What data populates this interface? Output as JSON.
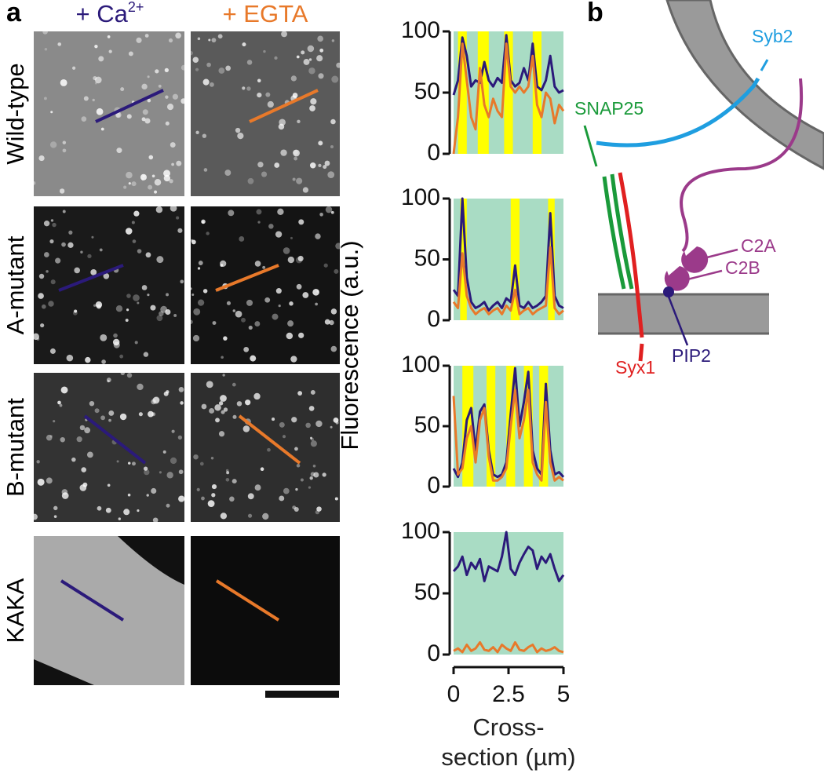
{
  "panel_labels": [
    "a",
    "b"
  ],
  "image_panel": {
    "columns": [
      {
        "text": "+ Ca",
        "sup": "2+",
        "color": "#2b1a7a"
      },
      {
        "text": "+ EGTA",
        "color": "#e8792a"
      }
    ],
    "rows": [
      "Wild-type",
      "A-mutant",
      "B-mutant",
      "KAKA"
    ]
  },
  "y_label": "Fluorescence (a.u.)",
  "x_label": "Cross-section (µm)",
  "diagram": {
    "labels": [
      "Syb2",
      "SNAP25",
      "C2A",
      "C2B",
      "Syx1",
      "PIP2"
    ]
  },
  "chart_data": [
    {
      "type": "line",
      "xlim": [
        0,
        5
      ],
      "ylim": [
        0,
        100
      ],
      "yticks": [
        0,
        50,
        100
      ],
      "background_color": "#a9dcc4",
      "band_color": "#ffff00",
      "bands": [
        [
          0.2,
          0.6
        ],
        [
          1.1,
          1.6
        ],
        [
          2.3,
          2.7
        ],
        [
          3.6,
          4.0
        ]
      ],
      "x": [
        0,
        0.2,
        0.4,
        0.6,
        0.8,
        1,
        1.2,
        1.4,
        1.6,
        1.8,
        2,
        2.2,
        2.4,
        2.6,
        2.8,
        3,
        3.2,
        3.4,
        3.6,
        3.8,
        4,
        4.2,
        4.4,
        4.6,
        4.8,
        5
      ],
      "series": [
        {
          "color": "#2b1a7a",
          "values": [
            48,
            60,
            95,
            80,
            55,
            60,
            58,
            75,
            60,
            55,
            62,
            58,
            97,
            60,
            55,
            58,
            70,
            60,
            90,
            55,
            52,
            60,
            80,
            55,
            50,
            52
          ]
        },
        {
          "color": "#e8792a",
          "values": [
            0,
            30,
            90,
            60,
            30,
            20,
            70,
            40,
            30,
            45,
            35,
            30,
            90,
            55,
            50,
            55,
            50,
            55,
            80,
            40,
            30,
            50,
            45,
            25,
            40,
            35
          ]
        }
      ]
    },
    {
      "type": "line",
      "xlim": [
        0,
        5
      ],
      "ylim": [
        0,
        100
      ],
      "yticks": [
        0,
        50,
        100
      ],
      "background_color": "#a9dcc4",
      "band_color": "#ffff00",
      "bands": [
        [
          0.3,
          0.6
        ],
        [
          2.6,
          3.0
        ],
        [
          4.3,
          4.6
        ]
      ],
      "x": [
        0,
        0.2,
        0.4,
        0.6,
        0.8,
        1,
        1.2,
        1.4,
        1.6,
        1.8,
        2,
        2.2,
        2.4,
        2.6,
        2.8,
        3,
        3.2,
        3.4,
        3.6,
        3.8,
        4,
        4.2,
        4.4,
        4.6,
        4.8,
        5
      ],
      "series": [
        {
          "color": "#2b1a7a",
          "values": [
            25,
            20,
            100,
            35,
            15,
            10,
            12,
            15,
            8,
            12,
            15,
            10,
            18,
            15,
            45,
            12,
            10,
            15,
            10,
            12,
            15,
            20,
            88,
            20,
            12,
            10
          ]
        },
        {
          "color": "#e8792a",
          "values": [
            15,
            10,
            55,
            20,
            10,
            5,
            8,
            10,
            5,
            8,
            10,
            5,
            12,
            8,
            25,
            5,
            8,
            10,
            5,
            8,
            10,
            12,
            60,
            10,
            5,
            8
          ]
        }
      ]
    },
    {
      "type": "line",
      "xlim": [
        0,
        5
      ],
      "ylim": [
        0,
        100
      ],
      "yticks": [
        0,
        50,
        100
      ],
      "background_color": "#a9dcc4",
      "band_color": "#ffff00",
      "bands": [
        [
          0.4,
          0.9
        ],
        [
          1.5,
          1.9
        ],
        [
          2.4,
          2.8
        ],
        [
          3.2,
          3.6
        ],
        [
          3.9,
          4.3
        ]
      ],
      "x": [
        0,
        0.2,
        0.4,
        0.6,
        0.8,
        1,
        1.2,
        1.4,
        1.6,
        1.8,
        2,
        2.2,
        2.4,
        2.6,
        2.8,
        3,
        3.2,
        3.4,
        3.6,
        3.8,
        4,
        4.2,
        4.4,
        4.6,
        4.8,
        5
      ],
      "series": [
        {
          "color": "#2b1a7a",
          "values": [
            15,
            8,
            20,
            55,
            65,
            30,
            62,
            68,
            30,
            10,
            8,
            10,
            20,
            60,
            98,
            50,
            70,
            95,
            30,
            15,
            10,
            85,
            30,
            10,
            12,
            8
          ]
        },
        {
          "color": "#e8792a",
          "values": [
            75,
            10,
            15,
            40,
            50,
            20,
            55,
            65,
            25,
            5,
            5,
            8,
            15,
            50,
            80,
            40,
            55,
            80,
            20,
            10,
            5,
            70,
            20,
            5,
            8,
            5
          ]
        }
      ]
    },
    {
      "type": "line",
      "xlim": [
        0,
        5
      ],
      "ylim": [
        0,
        100
      ],
      "yticks": [
        0,
        50,
        100
      ],
      "xticks": [
        0,
        2.5,
        5
      ],
      "background_color": "#a9dcc4",
      "x": [
        0,
        0.2,
        0.4,
        0.6,
        0.8,
        1,
        1.2,
        1.4,
        1.6,
        1.8,
        2,
        2.2,
        2.4,
        2.6,
        2.8,
        3,
        3.2,
        3.4,
        3.6,
        3.8,
        4,
        4.2,
        4.4,
        4.6,
        4.8,
        5
      ],
      "series": [
        {
          "color": "#2b1a7a",
          "values": [
            68,
            72,
            80,
            65,
            75,
            70,
            78,
            60,
            72,
            70,
            68,
            80,
            100,
            70,
            65,
            75,
            82,
            88,
            85,
            70,
            80,
            75,
            82,
            70,
            60,
            65
          ]
        },
        {
          "color": "#e8792a",
          "values": [
            3,
            5,
            2,
            8,
            3,
            5,
            10,
            4,
            3,
            6,
            2,
            8,
            5,
            3,
            10,
            4,
            3,
            6,
            8,
            2,
            5,
            3,
            4,
            6,
            3,
            2
          ]
        }
      ]
    }
  ]
}
